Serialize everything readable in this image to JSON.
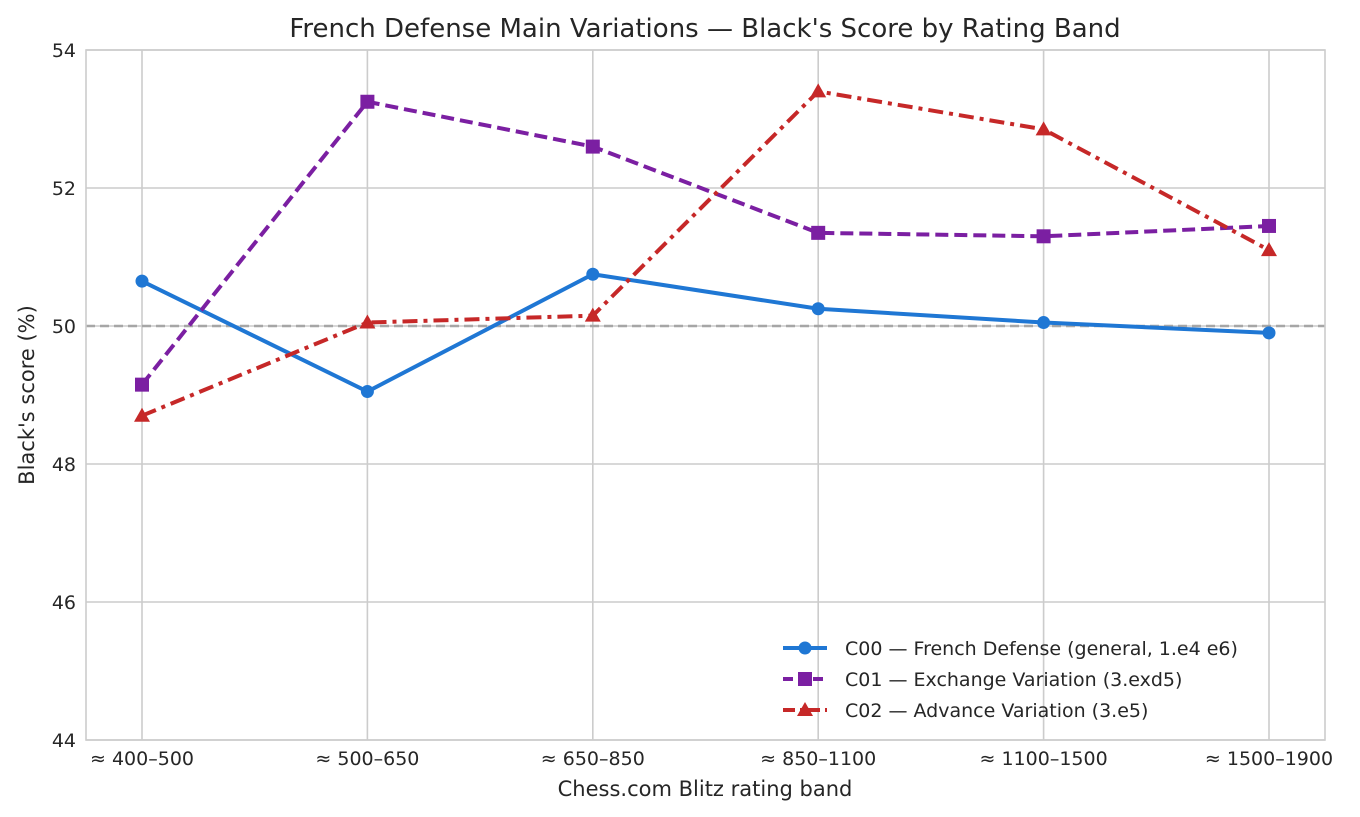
{
  "chart_data": {
    "type": "line",
    "title": "French Defense Main Variations — Black's Score by Rating Band",
    "xlabel": "Chess.com Blitz rating band",
    "ylabel": "Black's score (%)",
    "categories": [
      "≈ 400–500",
      "≈ 500–650",
      "≈ 650–850",
      "≈ 850–1100",
      "≈ 1100–1500",
      "≈ 1500–1900"
    ],
    "ylim": [
      44,
      54
    ],
    "yticks": [
      44,
      46,
      48,
      50,
      52,
      54
    ],
    "grid": true,
    "reference_line": {
      "y": 50,
      "style": "dashed",
      "color": "#a6a6a6"
    },
    "legend_position": "lower-right",
    "series": [
      {
        "name": "C00 — French Defense (general, 1.e4 e6)",
        "color": "#1f77d4",
        "marker": "circle",
        "dash": "solid",
        "values": [
          50.65,
          49.05,
          50.75,
          50.25,
          50.05,
          49.9
        ]
      },
      {
        "name": "C01 — Exchange Variation (3.exd5)",
        "color": "#7b1fa2",
        "marker": "square",
        "dash": "dashed",
        "values": [
          49.15,
          53.25,
          52.6,
          51.35,
          51.3,
          51.45
        ]
      },
      {
        "name": "C02 — Advance Variation (3.e5)",
        "color": "#c62828",
        "marker": "triangle",
        "dash": "dashdot",
        "values": [
          48.7,
          50.05,
          50.15,
          53.4,
          52.85,
          51.1
        ]
      }
    ]
  }
}
